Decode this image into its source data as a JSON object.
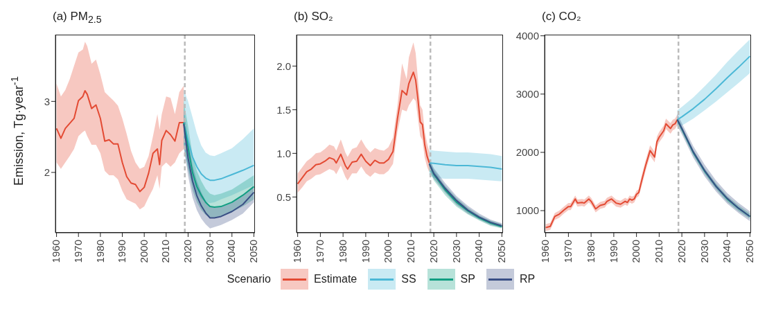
{
  "chart_data": [
    {
      "type": "line",
      "title": "(a) PM$_{2.5}$",
      "ylabel": "Emission, Tg·year$^{-1}$",
      "legend": "bottom",
      "legend_title": "Scenario",
      "xlim": [
        1959.5,
        2050.5
      ],
      "xticks": [
        1960,
        1970,
        1980,
        1990,
        2000,
        2010,
        2020,
        2030,
        2040,
        2050
      ],
      "ylim": [
        1.15,
        3.94
      ],
      "yticks": [
        2,
        3
      ],
      "ref_lines": [
        {
          "axis": "x",
          "value": 2018.5,
          "label": null,
          "color": "#bbbbbb",
          "line_style": "dashed"
        }
      ],
      "series": [
        {
          "name": "Estimate",
          "color": "#e34a33",
          "x": [
            1960,
            1962,
            1964,
            1966,
            1968,
            1970,
            1972,
            1973,
            1974,
            1976,
            1978,
            1980,
            1982,
            1984,
            1986,
            1988,
            1990,
            1992,
            1994,
            1996,
            1998,
            2000,
            2002,
            2004,
            2006,
            2007,
            2008,
            2010,
            2012,
            2014,
            2016,
            2018
          ],
          "values": [
            2.62,
            2.48,
            2.62,
            2.69,
            2.76,
            3.01,
            3.07,
            3.15,
            3.1,
            2.9,
            2.95,
            2.76,
            2.44,
            2.46,
            2.4,
            2.4,
            2.14,
            1.94,
            1.85,
            1.83,
            1.73,
            1.79,
            1.99,
            2.27,
            2.33,
            2.11,
            2.45,
            2.59,
            2.53,
            2.44,
            2.7,
            2.7
          ],
          "upper": [
            3.25,
            3.07,
            3.16,
            3.31,
            3.5,
            3.69,
            3.73,
            3.84,
            3.78,
            3.53,
            3.59,
            3.38,
            3.13,
            3.07,
            3.01,
            2.94,
            2.76,
            2.54,
            2.3,
            2.14,
            2.05,
            2.08,
            2.23,
            2.51,
            2.82,
            2.6,
            2.82,
            3.07,
            3.05,
            2.82,
            3.13,
            3.22
          ],
          "lower": [
            2.14,
            2.05,
            2.14,
            2.23,
            2.33,
            2.51,
            2.57,
            2.59,
            2.51,
            2.39,
            2.39,
            2.27,
            2.02,
            1.96,
            1.96,
            1.9,
            1.74,
            1.62,
            1.59,
            1.56,
            1.48,
            1.52,
            1.65,
            1.77,
            1.96,
            1.77,
            2.08,
            2.14,
            2.08,
            2.14,
            2.27,
            2.33
          ]
        },
        {
          "name": "SS",
          "color": "#4bb8d6",
          "x": [
            2018,
            2020,
            2022,
            2024,
            2026,
            2028,
            2030,
            2032,
            2035,
            2040,
            2045,
            2050
          ],
          "values": [
            2.7,
            2.45,
            2.22,
            2.08,
            1.98,
            1.92,
            1.89,
            1.89,
            1.91,
            1.97,
            2.03,
            2.1
          ],
          "upper": [
            3.17,
            3.0,
            2.78,
            2.55,
            2.38,
            2.28,
            2.24,
            2.23,
            2.27,
            2.34,
            2.47,
            2.62
          ],
          "lower": [
            2.35,
            2.05,
            1.85,
            1.72,
            1.63,
            1.58,
            1.57,
            1.58,
            1.62,
            1.68,
            1.75,
            1.82
          ]
        },
        {
          "name": "SP",
          "color": "#119e82",
          "x": [
            2018,
            2020,
            2022,
            2024,
            2026,
            2028,
            2030,
            2032,
            2035,
            2040,
            2045,
            2050
          ],
          "values": [
            2.7,
            2.35,
            2.0,
            1.8,
            1.68,
            1.58,
            1.52,
            1.51,
            1.52,
            1.58,
            1.68,
            1.8
          ],
          "upper": [
            3.0,
            2.65,
            2.25,
            2.02,
            1.88,
            1.77,
            1.7,
            1.68,
            1.7,
            1.76,
            1.86,
            1.96
          ],
          "lower": [
            2.4,
            2.05,
            1.75,
            1.58,
            1.47,
            1.4,
            1.36,
            1.36,
            1.38,
            1.44,
            1.52,
            1.62
          ]
        },
        {
          "name": "RP",
          "color": "#3a4f85",
          "x": [
            2018,
            2020,
            2022,
            2024,
            2026,
            2028,
            2030,
            2032,
            2035,
            2040,
            2045,
            2050
          ],
          "values": [
            2.68,
            2.2,
            1.88,
            1.67,
            1.53,
            1.43,
            1.36,
            1.36,
            1.38,
            1.45,
            1.55,
            1.72
          ],
          "upper": [
            2.9,
            2.45,
            2.1,
            1.88,
            1.72,
            1.6,
            1.52,
            1.5,
            1.52,
            1.58,
            1.68,
            1.82
          ],
          "lower": [
            2.35,
            1.95,
            1.65,
            1.47,
            1.35,
            1.27,
            1.21,
            1.23,
            1.26,
            1.33,
            1.42,
            1.58
          ]
        }
      ]
    },
    {
      "type": "line",
      "title": "(b) SO₂",
      "xlim": [
        1959.5,
        2050.5
      ],
      "xticks": [
        1960,
        1970,
        1980,
        1990,
        2000,
        2010,
        2020,
        2030,
        2040,
        2050
      ],
      "ylim": [
        0.09,
        2.36
      ],
      "yticks": [
        {
          "value": 0.5,
          "label": "0.5"
        },
        {
          "value": 1,
          "label": "1.0"
        },
        {
          "value": 1.5,
          "label": "1.5"
        },
        {
          "value": 2,
          "label": "2.0"
        }
      ],
      "ref_lines": [
        {
          "axis": "x",
          "value": 2018.5,
          "label": null,
          "color": "#bbbbbb",
          "line_style": "dashed"
        }
      ],
      "series": [
        {
          "color": "#e34a33",
          "x": [
            1960,
            1962,
            1964,
            1966,
            1968,
            1970,
            1972,
            1974,
            1976,
            1977,
            1979,
            1981,
            1982,
            1984,
            1986,
            1988,
            1990,
            1992,
            1994,
            1996,
            1998,
            2000,
            2002,
            2004,
            2006,
            2008,
            2009,
            2011,
            2012,
            2013,
            2014,
            2015,
            2016,
            2017,
            2018
          ],
          "values": [
            0.65,
            0.72,
            0.79,
            0.82,
            0.87,
            0.88,
            0.91,
            0.95,
            0.93,
            0.89,
            0.99,
            0.86,
            0.82,
            0.9,
            0.91,
            0.99,
            0.91,
            0.86,
            0.92,
            0.89,
            0.89,
            0.93,
            1.02,
            1.4,
            1.72,
            1.67,
            1.8,
            1.93,
            1.84,
            1.62,
            1.36,
            1.33,
            1.1,
            0.97,
            0.89
          ],
          "upper": [
            0.77,
            0.84,
            0.91,
            0.95,
            1.0,
            1.01,
            1.05,
            1.1,
            1.08,
            1.03,
            1.16,
            1.01,
            0.96,
            1.05,
            1.07,
            1.16,
            1.07,
            1.01,
            1.06,
            1.04,
            1.03,
            1.07,
            1.18,
            1.55,
            2.03,
            1.85,
            2.1,
            2.27,
            2.15,
            1.85,
            1.55,
            1.5,
            1.25,
            1.12,
            1.02
          ],
          "lower": [
            0.55,
            0.61,
            0.68,
            0.71,
            0.75,
            0.76,
            0.79,
            0.82,
            0.8,
            0.76,
            0.86,
            0.73,
            0.69,
            0.77,
            0.77,
            0.85,
            0.77,
            0.73,
            0.78,
            0.76,
            0.76,
            0.8,
            0.88,
            1.25,
            1.5,
            1.48,
            1.55,
            1.63,
            1.6,
            1.4,
            1.2,
            1.15,
            0.95,
            0.85,
            0.78
          ]
        },
        {
          "color": "#4bb8d6",
          "x": [
            2018,
            2020,
            2025,
            2030,
            2035,
            2040,
            2045,
            2050
          ],
          "values": [
            0.89,
            0.885,
            0.87,
            0.86,
            0.86,
            0.85,
            0.84,
            0.82
          ],
          "upper": [
            1.04,
            1.03,
            1.02,
            1.01,
            1.01,
            1.0,
            0.99,
            0.97
          ],
          "lower": [
            0.75,
            0.72,
            0.71,
            0.71,
            0.71,
            0.7,
            0.69,
            0.68
          ]
        },
        {
          "color": "#119e82",
          "x": [
            2018,
            2020,
            2025,
            2030,
            2035,
            2040,
            2045,
            2050
          ],
          "values": [
            0.88,
            0.76,
            0.58,
            0.44,
            0.34,
            0.26,
            0.2,
            0.16
          ],
          "upper": [
            0.93,
            0.81,
            0.63,
            0.49,
            0.38,
            0.29,
            0.23,
            0.19
          ],
          "lower": [
            0.8,
            0.69,
            0.52,
            0.39,
            0.3,
            0.23,
            0.17,
            0.14
          ]
        },
        {
          "color": "#3a4f85",
          "x": [
            2018,
            2020,
            2025,
            2030,
            2035,
            2040,
            2045,
            2050
          ],
          "values": [
            0.88,
            0.77,
            0.6,
            0.46,
            0.35,
            0.27,
            0.21,
            0.17
          ],
          "upper": [
            0.94,
            0.83,
            0.66,
            0.51,
            0.4,
            0.31,
            0.24,
            0.2
          ],
          "lower": [
            0.82,
            0.71,
            0.55,
            0.41,
            0.31,
            0.24,
            0.18,
            0.15
          ]
        }
      ]
    },
    {
      "type": "line",
      "title": "(c) CO₂",
      "xlim": [
        1959.5,
        2050.5
      ],
      "xticks": [
        1960,
        1970,
        1980,
        1990,
        2000,
        2010,
        2020,
        2030,
        2040,
        2050
      ],
      "ylim": [
        620,
        4020
      ],
      "yticks": [
        1000,
        2000,
        3000,
        4000
      ],
      "ref_lines": [
        {
          "axis": "x",
          "value": 2018.5,
          "label": null,
          "color": "#bbbbbb",
          "line_style": "dashed"
        }
      ],
      "series": [
        {
          "color": "#e34a33",
          "x": [
            1960,
            1962,
            1964,
            1966,
            1968,
            1970,
            1971,
            1973,
            1974,
            1976,
            1977,
            1979,
            1980,
            1982,
            1984,
            1986,
            1987,
            1989,
            1991,
            1993,
            1995,
            1996,
            1997,
            1998,
            1999,
            2000,
            2001,
            2002,
            2004,
            2006,
            2008,
            2009,
            2010,
            2012,
            2013,
            2015,
            2016,
            2017,
            2018
          ],
          "values": [
            710,
            730,
            900,
            940,
            1010,
            1070,
            1070,
            1200,
            1130,
            1140,
            1130,
            1200,
            1160,
            1030,
            1090,
            1110,
            1160,
            1200,
            1130,
            1110,
            1160,
            1140,
            1200,
            1180,
            1200,
            1280,
            1310,
            1470,
            1770,
            2030,
            1920,
            2180,
            2260,
            2370,
            2490,
            2410,
            2470,
            2490,
            2560
          ],
          "upper": [
            770,
            790,
            960,
            1000,
            1070,
            1130,
            1130,
            1260,
            1190,
            1200,
            1190,
            1260,
            1220,
            1090,
            1150,
            1170,
            1220,
            1260,
            1190,
            1170,
            1220,
            1200,
            1260,
            1240,
            1260,
            1340,
            1370,
            1560,
            1860,
            2120,
            2010,
            2270,
            2350,
            2460,
            2580,
            2500,
            2560,
            2580,
            2650
          ],
          "lower": [
            650,
            670,
            840,
            880,
            950,
            1010,
            1010,
            1140,
            1070,
            1080,
            1070,
            1140,
            1100,
            970,
            1030,
            1050,
            1100,
            1140,
            1070,
            1050,
            1100,
            1080,
            1140,
            1120,
            1140,
            1220,
            1250,
            1380,
            1680,
            1940,
            1830,
            2090,
            2170,
            2280,
            2400,
            2320,
            2380,
            2400,
            2470
          ]
        },
        {
          "color": "#4bb8d6",
          "x": [
            2018,
            2020,
            2025,
            2030,
            2035,
            2040,
            2045,
            2050
          ],
          "values": [
            2560,
            2610,
            2750,
            2910,
            3090,
            3280,
            3460,
            3650
          ],
          "upper": [
            2720,
            2780,
            2940,
            3130,
            3330,
            3550,
            3750,
            3940
          ],
          "lower": [
            2420,
            2460,
            2580,
            2720,
            2870,
            3030,
            3190,
            3360
          ]
        },
        {
          "color": "#119e82",
          "x": [
            2018,
            2020,
            2025,
            2030,
            2035,
            2040,
            2045,
            2050
          ],
          "values": [
            2560,
            2400,
            2000,
            1680,
            1420,
            1200,
            1040,
            900
          ],
          "upper": [
            2610,
            2450,
            2050,
            1730,
            1470,
            1250,
            1090,
            950
          ],
          "lower": [
            2500,
            2350,
            1950,
            1630,
            1370,
            1150,
            990,
            860
          ]
        },
        {
          "color": "#3a4f85",
          "x": [
            2018,
            2020,
            2025,
            2030,
            2035,
            2040,
            2045,
            2050
          ],
          "values": [
            2560,
            2410,
            2010,
            1690,
            1420,
            1210,
            1040,
            900
          ],
          "upper": [
            2660,
            2500,
            2110,
            1790,
            1520,
            1300,
            1130,
            990
          ],
          "lower": [
            2450,
            2310,
            1910,
            1590,
            1330,
            1120,
            960,
            820
          ]
        }
      ]
    }
  ]
}
